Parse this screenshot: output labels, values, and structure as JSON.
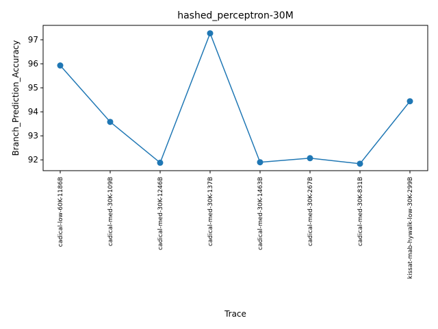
{
  "chart_data": {
    "type": "line",
    "title": "hashed_perceptron-30M",
    "xlabel": "Trace",
    "ylabel": "Branch_Prediction_Accuracy",
    "categories": [
      "cadical-low-60K-1186B",
      "cadical-med-30K-109B",
      "cadical-med-30K-1246B",
      "cadical-med-30K-137B",
      "cadical-med-30K-1463B",
      "cadical-med-30K-267B",
      "cadical-med-30K-831B",
      "kissat-mab-hywalk-low-30K-299B"
    ],
    "values": [
      95.93,
      93.58,
      91.88,
      97.27,
      91.9,
      92.07,
      91.84,
      94.44
    ],
    "ylim": [
      91.55,
      97.6
    ],
    "yticks": [
      92,
      93,
      94,
      95,
      96,
      97
    ],
    "grid": false,
    "legend": "none",
    "marker": "circle",
    "color": "#1f77b4"
  }
}
